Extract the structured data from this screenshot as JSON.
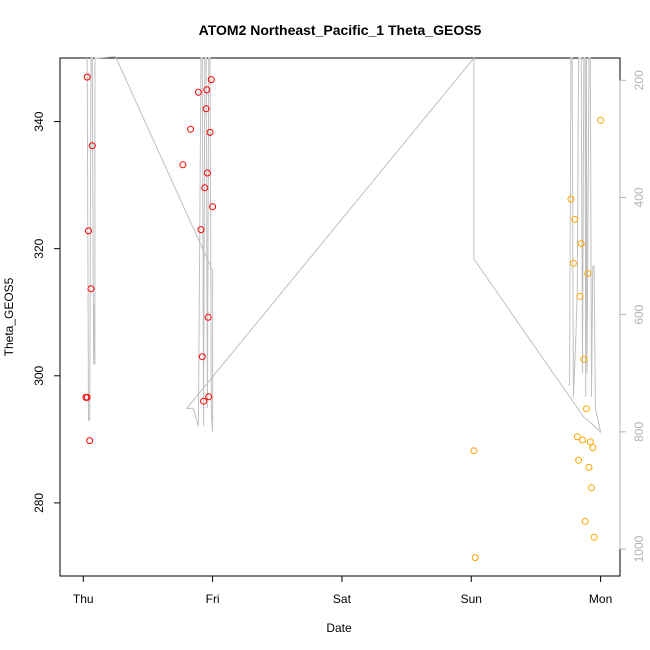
{
  "chart_data": {
    "type": "scatter",
    "title": "ATOM2 Northeast_Pacific_1 Theta_GEOS5",
    "xlabel": "Date",
    "ylabel": "Theta_GEOS5",
    "x_ticks": [
      "Thu",
      "Fri",
      "Sat",
      "Sun",
      "Mon"
    ],
    "y_ticks": [
      280,
      300,
      320,
      340
    ],
    "y_right_ticks": [
      200,
      400,
      600,
      800,
      1000
    ],
    "xlim_days": [
      -0.18,
      4.15
    ],
    "ylim": [
      268.5,
      350
    ],
    "y_right_lim": [
      1046,
      162
    ],
    "colors": {
      "series_red": "#ff0000",
      "series_orange": "#ffa500",
      "profile_line": "#c0c0c0",
      "axis": "#000000",
      "right_axis": "#b3b3b3"
    },
    "series": [
      {
        "color": "red",
        "points": [
          [
            0.02,
            296.6
          ],
          [
            0.03,
            296.6
          ],
          [
            0.03,
            347.0
          ],
          [
            0.04,
            322.8
          ],
          [
            0.05,
            289.8
          ],
          [
            0.06,
            313.7
          ],
          [
            0.07,
            336.2
          ],
          [
            0.77,
            333.2
          ],
          [
            0.83,
            338.8
          ],
          [
            0.89,
            344.6
          ],
          [
            0.91,
            323.0
          ],
          [
            0.92,
            303.0
          ],
          [
            0.93,
            296.0
          ],
          [
            0.94,
            329.6
          ],
          [
            0.95,
            342.0
          ],
          [
            0.955,
            345.0
          ],
          [
            0.96,
            331.9
          ],
          [
            0.965,
            309.2
          ],
          [
            0.97,
            296.7
          ],
          [
            0.98,
            338.3
          ],
          [
            0.99,
            346.6
          ],
          [
            1.0,
            326.6
          ]
        ]
      },
      {
        "color": "orange",
        "points": [
          [
            3.02,
            288.2
          ],
          [
            3.03,
            271.4
          ],
          [
            3.77,
            327.8
          ],
          [
            3.79,
            317.7
          ],
          [
            3.8,
            324.6
          ],
          [
            3.82,
            290.4
          ],
          [
            3.83,
            286.7
          ],
          [
            3.84,
            312.5
          ],
          [
            3.85,
            320.8
          ],
          [
            3.86,
            289.9
          ],
          [
            3.87,
            302.6
          ],
          [
            3.88,
            277.1
          ],
          [
            3.89,
            294.8
          ],
          [
            3.9,
            316.1
          ],
          [
            3.91,
            285.6
          ],
          [
            3.92,
            289.6
          ],
          [
            3.93,
            282.4
          ],
          [
            3.94,
            288.7
          ],
          [
            3.95,
            274.6
          ],
          [
            4.0,
            340.2
          ]
        ]
      }
    ],
    "profile_line_pressure": [
      [
        0.03,
        0
      ],
      [
        0.04,
        780
      ],
      [
        0.05,
        780
      ],
      [
        0.06,
        0
      ],
      [
        0.07,
        0
      ],
      [
        0.08,
        685
      ],
      [
        0.08,
        580
      ],
      [
        0.09,
        685
      ],
      [
        0.09,
        0
      ],
      [
        0.1,
        0
      ],
      [
        0.25,
        160
      ],
      [
        1.0,
        525
      ],
      [
        1.0,
        800
      ],
      [
        0.99,
        770
      ],
      [
        0.98,
        0
      ],
      [
        0.97,
        0
      ],
      [
        0.96,
        760
      ],
      [
        0.95,
        0
      ],
      [
        0.94,
        0
      ],
      [
        0.93,
        790
      ],
      [
        0.92,
        0
      ],
      [
        0.91,
        0
      ],
      [
        0.89,
        790
      ],
      [
        0.85,
        760
      ],
      [
        0.8,
        760
      ],
      [
        3.02,
        162
      ],
      [
        3.02,
        505
      ],
      [
        3.87,
        775
      ],
      [
        3.9,
        780
      ],
      [
        4.0,
        800
      ],
      [
        3.96,
        760
      ],
      [
        3.95,
        517
      ],
      [
        3.94,
        517
      ],
      [
        3.93,
        740
      ],
      [
        3.92,
        0
      ],
      [
        3.91,
        0
      ],
      [
        3.895,
        700
      ],
      [
        3.89,
        0
      ],
      [
        3.885,
        740
      ],
      [
        3.88,
        0
      ],
      [
        3.87,
        0
      ],
      [
        3.86,
        700
      ],
      [
        3.85,
        0
      ],
      [
        3.83,
        0
      ],
      [
        3.82,
        560
      ],
      [
        3.81,
        630
      ],
      [
        3.79,
        740
      ],
      [
        3.78,
        0
      ],
      [
        3.77,
        0
      ],
      [
        3.76,
        720
      ],
      [
        3.75,
        720
      ]
    ]
  }
}
